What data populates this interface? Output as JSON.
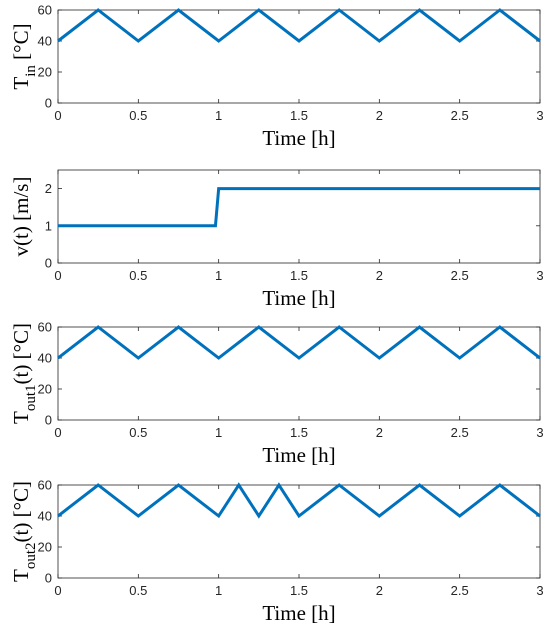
{
  "colors": {
    "line": "#0072BD",
    "axis": "#262626"
  },
  "chart_data": [
    {
      "type": "line",
      "xlabel": "Time [h]",
      "ylabel": {
        "main": "T",
        "sub": "in",
        "post": " [°C]"
      },
      "xlim": [
        0,
        3
      ],
      "ylim": [
        0,
        60
      ],
      "xticks": [
        0,
        0.5,
        1,
        1.5,
        2,
        2.5,
        3
      ],
      "xtick_labels": [
        "0",
        "0.5",
        "1",
        "1.5",
        "2",
        "2.5",
        "3"
      ],
      "yticks": [
        0,
        20,
        40,
        60
      ],
      "ytick_labels": [
        "0",
        "20",
        "40",
        "60"
      ],
      "x": [
        0,
        0.25,
        0.5,
        0.75,
        1.0,
        1.25,
        1.5,
        1.75,
        2.0,
        2.25,
        2.5,
        2.75,
        3.0
      ],
      "y": [
        40,
        60,
        40,
        60,
        40,
        60,
        40,
        60,
        40,
        60,
        40,
        60,
        40
      ]
    },
    {
      "type": "line",
      "xlabel": "Time [h]",
      "ylabel": {
        "main": "v(t) [m/s]",
        "sub": "",
        "post": ""
      },
      "xlim": [
        0,
        3
      ],
      "ylim": [
        0,
        2.5
      ],
      "xticks": [
        0,
        0.5,
        1,
        1.5,
        2,
        2.5,
        3
      ],
      "xtick_labels": [
        "0",
        "0.5",
        "1",
        "1.5",
        "2",
        "2.5",
        "3"
      ],
      "yticks": [
        0,
        1,
        2
      ],
      "ytick_labels": [
        "0",
        "1",
        "2"
      ],
      "x": [
        0,
        0.98,
        1.0,
        3.0
      ],
      "y": [
        1,
        1,
        2,
        2
      ]
    },
    {
      "type": "line",
      "xlabel": "Time [h]",
      "ylabel": {
        "main": "T",
        "sub": "out1",
        "post": "(t) [°C]"
      },
      "xlim": [
        0,
        3
      ],
      "ylim": [
        0,
        60
      ],
      "xticks": [
        0,
        0.5,
        1,
        1.5,
        2,
        2.5,
        3
      ],
      "xtick_labels": [
        "0",
        "0.5",
        "1",
        "1.5",
        "2",
        "2.5",
        "3"
      ],
      "yticks": [
        0,
        20,
        40,
        60
      ],
      "ytick_labels": [
        "0",
        "20",
        "40",
        "60"
      ],
      "x": [
        0,
        0.25,
        0.5,
        0.75,
        1.0,
        1.25,
        1.5,
        1.75,
        2.0,
        2.25,
        2.5,
        2.75,
        3.0
      ],
      "y": [
        40,
        60,
        40,
        60,
        40,
        60,
        40,
        60,
        40,
        60,
        40,
        60,
        40
      ]
    },
    {
      "type": "line",
      "xlabel": "Time [h]",
      "ylabel": {
        "main": "T",
        "sub": "out2",
        "post": "(t) [°C]"
      },
      "xlim": [
        0,
        3
      ],
      "ylim": [
        0,
        60
      ],
      "xticks": [
        0,
        0.5,
        1,
        1.5,
        2,
        2.5,
        3
      ],
      "xtick_labels": [
        "0",
        "0.5",
        "1",
        "1.5",
        "2",
        "2.5",
        "3"
      ],
      "yticks": [
        0,
        20,
        40,
        60
      ],
      "ytick_labels": [
        "0",
        "20",
        "40",
        "60"
      ],
      "x": [
        0,
        0.25,
        0.5,
        0.75,
        1.0,
        1.125,
        1.25,
        1.375,
        1.5,
        1.75,
        2.0,
        2.25,
        2.5,
        2.75,
        3.0
      ],
      "y": [
        40,
        60,
        40,
        60,
        40,
        60,
        40,
        60,
        40,
        60,
        40,
        60,
        40,
        60,
        40
      ]
    }
  ]
}
